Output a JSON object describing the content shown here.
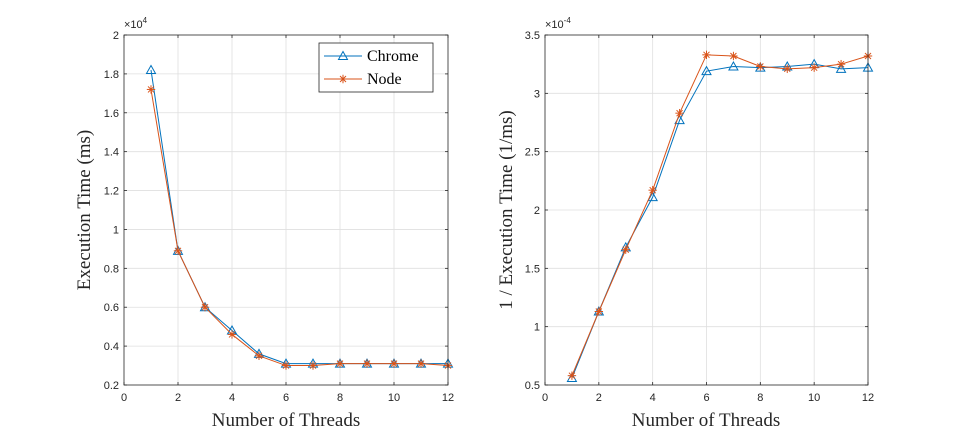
{
  "chart_data": [
    {
      "type": "line",
      "xlabel": "Number of Threads",
      "ylabel": "Execution Time (ms)",
      "exponent_base": "×10",
      "exponent_power": "4",
      "xlim": [
        0,
        12
      ],
      "ylim": [
        0.2,
        2.0
      ],
      "xticks": [
        "0",
        "2",
        "4",
        "6",
        "8",
        "10",
        "12"
      ],
      "yticks": [
        "0.2",
        "0.4",
        "0.6",
        "0.8",
        "1",
        "1.2",
        "1.4",
        "1.6",
        "1.8",
        "2"
      ],
      "grid": true,
      "legend_position": "top-right",
      "x": [
        1,
        2,
        3,
        4,
        5,
        6,
        7,
        8,
        9,
        10,
        11,
        12
      ],
      "series": [
        {
          "name": "Chrome",
          "color": "#0072BD",
          "marker": "triangle",
          "values": [
            1.82,
            0.89,
            0.6,
            0.48,
            0.36,
            0.31,
            0.31,
            0.31,
            0.31,
            0.31,
            0.31,
            0.31
          ]
        },
        {
          "name": "Node",
          "color": "#D95319",
          "marker": "asterisk",
          "values": [
            1.72,
            0.89,
            0.6,
            0.46,
            0.35,
            0.3,
            0.3,
            0.31,
            0.31,
            0.31,
            0.31,
            0.3
          ]
        }
      ]
    },
    {
      "type": "line",
      "xlabel": "Number of Threads",
      "ylabel": "1 / Execution Time (1/ms)",
      "exponent_base": "×10",
      "exponent_power": "-4",
      "xlim": [
        0,
        12
      ],
      "ylim": [
        0.5,
        3.5
      ],
      "xticks": [
        "0",
        "2",
        "4",
        "6",
        "8",
        "10",
        "12"
      ],
      "yticks": [
        "0.5",
        "1",
        "1.5",
        "2",
        "2.5",
        "3",
        "3.5"
      ],
      "grid": true,
      "x": [
        1,
        2,
        3,
        4,
        5,
        6,
        7,
        8,
        9,
        10,
        11,
        12
      ],
      "series": [
        {
          "color": "#0072BD",
          "marker": "triangle",
          "values": [
            0.56,
            1.13,
            1.68,
            2.11,
            2.77,
            3.19,
            3.23,
            3.22,
            3.23,
            3.25,
            3.21,
            3.22
          ]
        },
        {
          "color": "#D95319",
          "marker": "asterisk",
          "values": [
            0.58,
            1.13,
            1.66,
            2.17,
            2.83,
            3.33,
            3.32,
            3.23,
            3.21,
            3.22,
            3.25,
            3.32
          ]
        }
      ]
    }
  ]
}
